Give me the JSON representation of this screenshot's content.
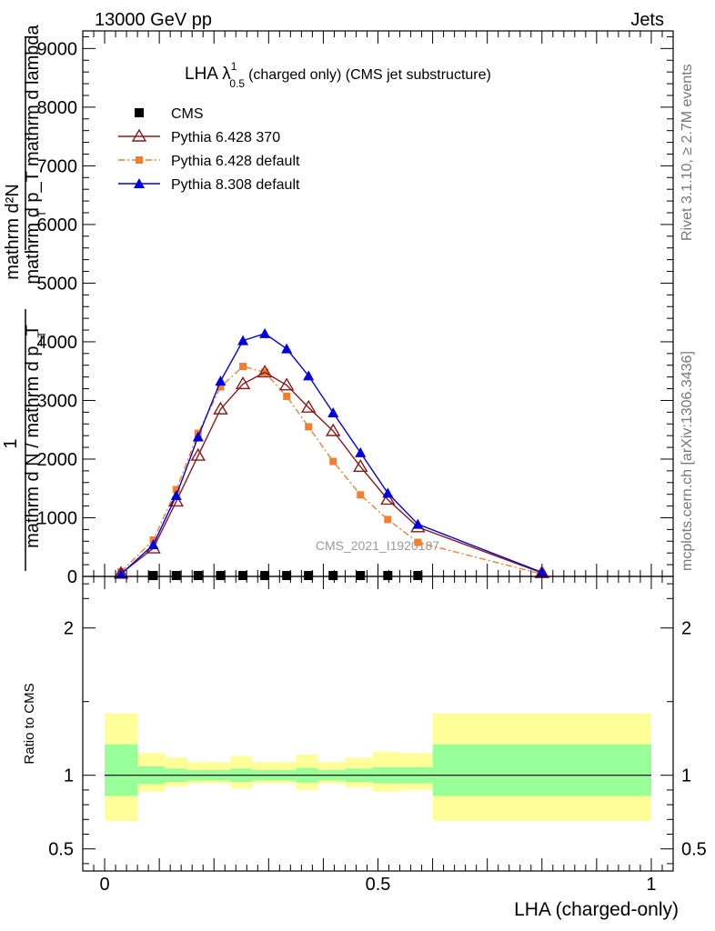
{
  "header": {
    "left": "13000 GeV pp",
    "right": "Jets"
  },
  "side_labels": {
    "rivet": "Rivet 3.1.10, ≥ 2.7M events",
    "mcplots": "mcplots.cern.ch [arXiv:1306.3436]"
  },
  "watermark": "CMS_2021_I1920187",
  "chart_data": [
    {
      "type": "line",
      "title_main": "LHA λ",
      "title_sup": "1",
      "title_sub": "0.5",
      "title_rest": "(charged only) (CMS jet substructure)",
      "ylabel_top_numerator": "mathrm d²N",
      "ylabel_top_denominator": "mathrm d p_T mathrm d lambda",
      "ylabel_bottom_numerator": "1",
      "ylabel_bottom_denominator": "mathrm d N / mathrm d p_T",
      "ylabel_subscript": "T",
      "xlim": [
        -0.04,
        1.04
      ],
      "ylim": [
        0,
        9300
      ],
      "yticks": [
        0,
        1000,
        2000,
        3000,
        4000,
        5000,
        6000,
        7000,
        8000,
        9000
      ],
      "ytick_labels": [
        "0",
        "1000",
        "2000",
        "3000",
        "4000",
        "5000",
        "6000",
        "7000",
        "8000",
        "9000"
      ],
      "legend_position": "top-left",
      "series": [
        {
          "name": "CMS",
          "marker": "square",
          "color": "#000000",
          "x": [
            0.089,
            0.131,
            0.171,
            0.212,
            0.253,
            0.293,
            0.333,
            0.373,
            0.418,
            0.468,
            0.518,
            0.573
          ],
          "values": [
            15,
            15,
            15,
            15,
            15,
            15,
            15,
            15,
            15,
            15,
            15,
            15
          ]
        },
        {
          "name": "Pythia 6.428 370",
          "marker": "triangle-open",
          "line": "solid",
          "color": "#8b1a1a",
          "x": [
            0.03,
            0.089,
            0.131,
            0.171,
            0.212,
            0.253,
            0.293,
            0.333,
            0.373,
            0.418,
            0.468,
            0.518,
            0.573,
            0.8
          ],
          "values": [
            50,
            480,
            1280,
            2060,
            2850,
            3280,
            3480,
            3260,
            2880,
            2480,
            1870,
            1310,
            840,
            60
          ]
        },
        {
          "name": "Pythia 6.428 default",
          "marker": "square-small",
          "line": "dashdot",
          "color": "#f08030",
          "x": [
            0.03,
            0.089,
            0.131,
            0.171,
            0.212,
            0.253,
            0.293,
            0.333,
            0.373,
            0.418,
            0.468,
            0.518,
            0.573,
            0.8
          ],
          "values": [
            80,
            620,
            1480,
            2440,
            3230,
            3580,
            3480,
            3070,
            2550,
            1960,
            1390,
            970,
            580,
            40
          ]
        },
        {
          "name": "Pythia 8.308 default",
          "marker": "triangle",
          "line": "solid",
          "color": "#0000e0",
          "x": [
            0.03,
            0.089,
            0.131,
            0.171,
            0.212,
            0.253,
            0.293,
            0.333,
            0.373,
            0.418,
            0.468,
            0.518,
            0.573,
            0.8
          ],
          "values": [
            40,
            540,
            1380,
            2380,
            3330,
            4020,
            4140,
            3880,
            3420,
            2790,
            2110,
            1420,
            890,
            70
          ]
        }
      ]
    },
    {
      "type": "band",
      "ylabel": "Ratio to CMS",
      "xlabel": "LHA (charged-only)",
      "xlim": [
        -0.04,
        1.04
      ],
      "ylim": [
        0.35,
        2.35
      ],
      "yticks": [
        0.5,
        1,
        2
      ],
      "ytick_labels": [
        "0.5",
        "1",
        "2"
      ],
      "xticks": [
        0,
        0.5,
        1
      ],
      "xtick_labels": [
        "0",
        "0.5",
        "1"
      ],
      "reference": 1,
      "bins": [
        {
          "lo": 0.0,
          "hi": 0.06,
          "stat_lo": 0.86,
          "stat_hi": 1.21,
          "tot_lo": 0.69,
          "tot_hi": 1.42
        },
        {
          "lo": 0.06,
          "hi": 0.11,
          "stat_lo": 0.94,
          "stat_hi": 1.06,
          "tot_lo": 0.89,
          "tot_hi": 1.15
        },
        {
          "lo": 0.11,
          "hi": 0.15,
          "stat_lo": 0.955,
          "stat_hi": 1.045,
          "tot_lo": 0.925,
          "tot_hi": 1.12
        },
        {
          "lo": 0.15,
          "hi": 0.19,
          "stat_lo": 0.965,
          "stat_hi": 1.035,
          "tot_lo": 0.945,
          "tot_hi": 1.09
        },
        {
          "lo": 0.19,
          "hi": 0.23,
          "stat_lo": 0.965,
          "stat_hi": 1.035,
          "tot_lo": 0.945,
          "tot_hi": 1.09
        },
        {
          "lo": 0.23,
          "hi": 0.27,
          "stat_lo": 0.955,
          "stat_hi": 1.045,
          "tot_lo": 0.91,
          "tot_hi": 1.13
        },
        {
          "lo": 0.27,
          "hi": 0.31,
          "stat_lo": 0.965,
          "stat_hi": 1.035,
          "tot_lo": 0.945,
          "tot_hi": 1.09
        },
        {
          "lo": 0.31,
          "hi": 0.35,
          "stat_lo": 0.965,
          "stat_hi": 1.035,
          "tot_lo": 0.945,
          "tot_hi": 1.09
        },
        {
          "lo": 0.35,
          "hi": 0.39,
          "stat_lo": 0.95,
          "stat_hi": 1.05,
          "tot_lo": 0.9,
          "tot_hi": 1.14
        },
        {
          "lo": 0.39,
          "hi": 0.44,
          "stat_lo": 0.965,
          "stat_hi": 1.035,
          "tot_lo": 0.945,
          "tot_hi": 1.09
        },
        {
          "lo": 0.44,
          "hi": 0.49,
          "stat_lo": 0.955,
          "stat_hi": 1.045,
          "tot_lo": 0.92,
          "tot_hi": 1.12
        },
        {
          "lo": 0.49,
          "hi": 0.54,
          "stat_lo": 0.945,
          "stat_hi": 1.055,
          "tot_lo": 0.89,
          "tot_hi": 1.16
        },
        {
          "lo": 0.54,
          "hi": 0.6,
          "stat_lo": 0.945,
          "stat_hi": 1.055,
          "tot_lo": 0.9,
          "tot_hi": 1.15
        },
        {
          "lo": 0.6,
          "hi": 1.0,
          "stat_lo": 0.86,
          "stat_hi": 1.21,
          "tot_lo": 0.69,
          "tot_hi": 1.42
        }
      ],
      "colors": {
        "stat": "#99ff99",
        "total": "#ffff99"
      }
    }
  ]
}
